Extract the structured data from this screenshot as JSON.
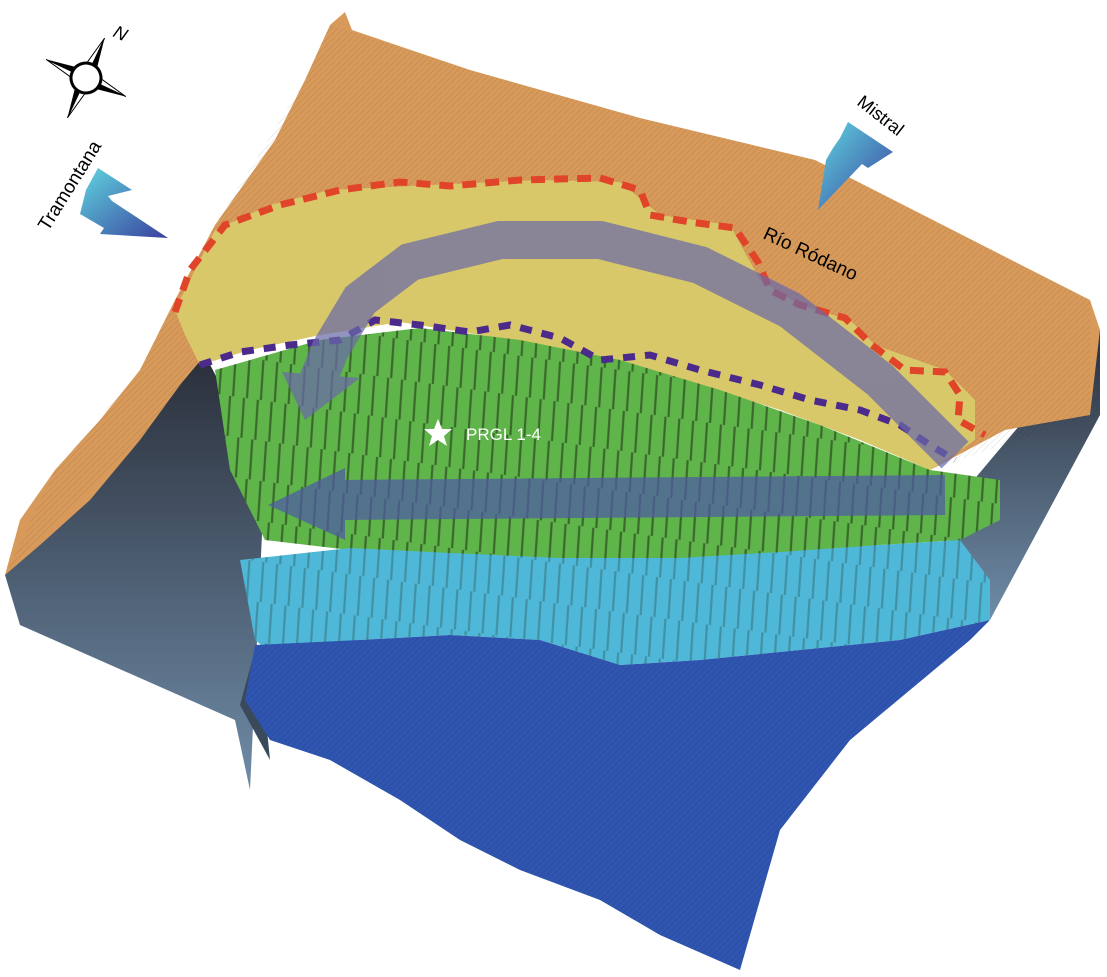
{
  "compass": {
    "north_label": "N"
  },
  "winds": [
    {
      "label": "Tramontana"
    },
    {
      "label": "Mistral"
    }
  ],
  "labels": {
    "river": "Río Ródano",
    "site": "PRGL 1-4"
  },
  "colors": {
    "land": "#d89a5a",
    "shelf": "#d9c86a",
    "upper_slope": "#5fb54a",
    "mid_slope": "#4fb8d8",
    "basin": "#2f55b0",
    "shelf_boundary": "#e0452a",
    "canyon_head_line": "#4b2a8c",
    "current_arrow": "#6a6aa8",
    "wind_arrow": "#48c0d6"
  }
}
